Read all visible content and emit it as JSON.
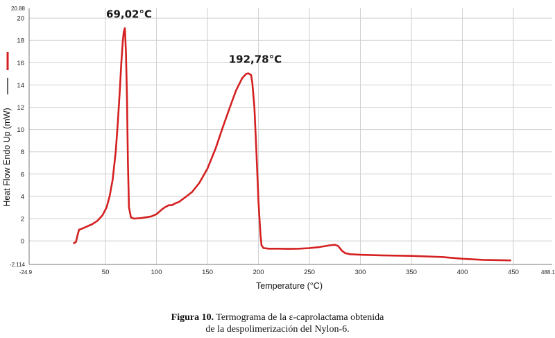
{
  "chart_data": {
    "type": "line",
    "title": "",
    "xlabel": "Temperature (°C)",
    "ylabel": "Heat Flow Endo Up (mW)",
    "xlim": [
      -24.9,
      488.1
    ],
    "ylim": [
      -2.114,
      20.88
    ],
    "xticks": [
      50,
      100,
      150,
      200,
      250,
      300,
      350,
      400,
      450
    ],
    "yticks": [
      0,
      2,
      4,
      6,
      8,
      10,
      12,
      14,
      16,
      18,
      20
    ],
    "x_edge_labels": [
      "-24.9",
      "488.1"
    ],
    "y_edge_labels": [
      "20.88",
      "-2.114"
    ],
    "grid": true,
    "legend": "left",
    "legend_colors": [
      "#d42020",
      "#000000"
    ],
    "series": [
      {
        "color": "#d42020",
        "x": [
          19,
          21,
          22,
          24,
          27,
          32,
          37,
          42,
          47,
          51,
          54,
          57,
          60,
          62,
          64,
          65.5,
          67,
          68,
          69.02,
          70,
          71,
          72,
          73,
          75,
          78,
          85,
          95,
          100,
          105,
          108,
          110,
          112,
          115,
          118,
          122,
          128,
          135,
          142,
          150,
          158,
          165,
          172,
          178,
          184,
          188,
          190,
          192.78,
          194,
          196,
          198,
          200,
          202,
          203,
          205,
          210,
          220,
          230,
          240,
          250,
          260,
          270,
          275,
          278,
          282,
          285,
          290,
          300,
          320,
          350,
          380,
          400,
          420,
          447
        ],
        "y": [
          -0.2,
          -0.1,
          0.3,
          1.0,
          1.1,
          1.3,
          1.5,
          1.8,
          2.3,
          3.0,
          4.0,
          5.5,
          8.0,
          10.5,
          13.5,
          16.0,
          18.0,
          18.8,
          19.1,
          17.0,
          13.0,
          7.0,
          3.0,
          2.1,
          2.0,
          2.05,
          2.2,
          2.4,
          2.8,
          3.0,
          3.1,
          3.2,
          3.2,
          3.35,
          3.5,
          3.9,
          4.4,
          5.2,
          6.5,
          8.3,
          10.2,
          12.0,
          13.5,
          14.6,
          15.0,
          15.05,
          14.9,
          14.2,
          12.0,
          8.0,
          3.5,
          0.5,
          -0.4,
          -0.65,
          -0.7,
          -0.7,
          -0.72,
          -0.7,
          -0.65,
          -0.55,
          -0.4,
          -0.35,
          -0.45,
          -0.9,
          -1.1,
          -1.2,
          -1.25,
          -1.3,
          -1.35,
          -1.45,
          -1.6,
          -1.7,
          -1.75
        ]
      }
    ],
    "annotations": [
      {
        "text": "69,02°C",
        "x": 69.02,
        "y": 19.1
      },
      {
        "text": "192,78°C",
        "x": 192.78,
        "y": 15.05
      }
    ]
  },
  "caption": {
    "label": "Figura 10.",
    "line1": "Termograma de la ε-caprolactama obtenida",
    "line2": "de la despolimerización del Nylon-6."
  }
}
